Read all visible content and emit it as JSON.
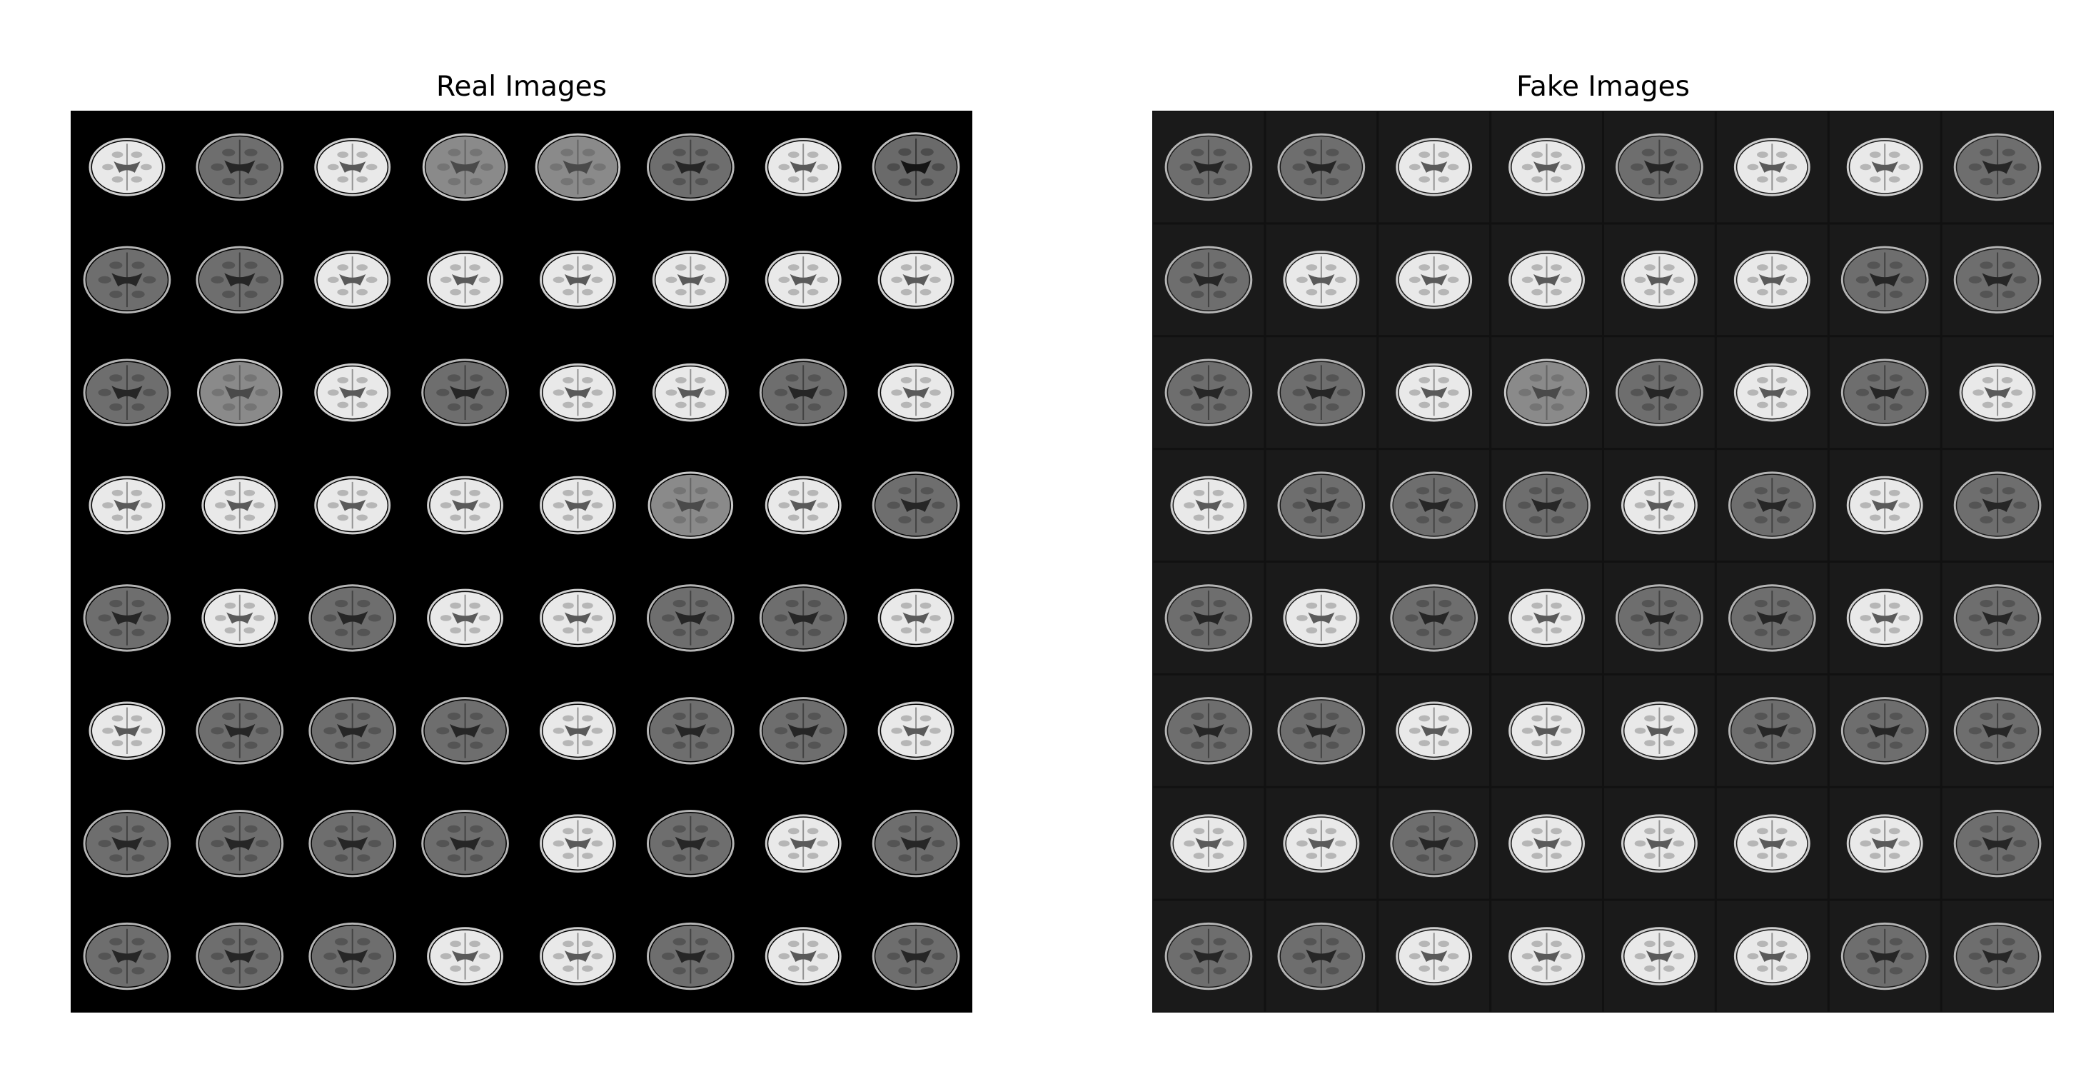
{
  "panels": [
    {
      "title": "Real Images",
      "rows": 8,
      "cols": 8,
      "background": "#000000",
      "tile_background": "#000000",
      "separator": "none",
      "tiles": [
        [
          "bright",
          "dark",
          "bright",
          "mid",
          "mid",
          "dark",
          "bright",
          "mid-ring"
        ],
        [
          "dark",
          "dark",
          "bright",
          "bright",
          "bright",
          "bright",
          "bright",
          "bright"
        ],
        [
          "dark",
          "mid",
          "bright",
          "dark",
          "bright",
          "bright",
          "dark",
          "bright"
        ],
        [
          "bright",
          "bright",
          "bright",
          "bright",
          "bright",
          "mid",
          "bright",
          "dark"
        ],
        [
          "dark",
          "bright",
          "dark",
          "bright",
          "bright",
          "dark",
          "dark",
          "bright"
        ],
        [
          "bright",
          "dark",
          "dark",
          "dark",
          "bright",
          "dark",
          "dark",
          "bright"
        ],
        [
          "dark",
          "dark",
          "dark",
          "dark",
          "bright",
          "dark",
          "bright",
          "dark"
        ],
        [
          "dark",
          "dark",
          "dark",
          "bright",
          "bright",
          "dark",
          "bright",
          "dark"
        ]
      ]
    },
    {
      "title": "Fake Images",
      "rows": 8,
      "cols": 8,
      "background": "#111111",
      "tile_background": "#1a1a1a",
      "separator": "#050505",
      "tiles": [
        [
          "dark",
          "dark",
          "bright",
          "bright",
          "dark",
          "bright",
          "bright",
          "dark"
        ],
        [
          "dark",
          "bright",
          "bright",
          "bright",
          "bright",
          "bright",
          "dark",
          "dark"
        ],
        [
          "dark",
          "dark",
          "bright",
          "mid",
          "dark",
          "bright",
          "dark",
          "bright"
        ],
        [
          "bright",
          "dark",
          "dark",
          "dark",
          "bright",
          "dark",
          "bright",
          "dark"
        ],
        [
          "dark",
          "bright",
          "dark",
          "bright",
          "dark",
          "dark",
          "bright",
          "dark"
        ],
        [
          "dark",
          "dark",
          "bright",
          "bright",
          "bright",
          "dark",
          "dark",
          "dark"
        ],
        [
          "bright",
          "bright",
          "dark",
          "bright",
          "bright",
          "bright",
          "bright",
          "dark"
        ],
        [
          "dark",
          "dark",
          "bright",
          "bright",
          "bright",
          "bright",
          "dark",
          "dark"
        ]
      ]
    }
  ]
}
